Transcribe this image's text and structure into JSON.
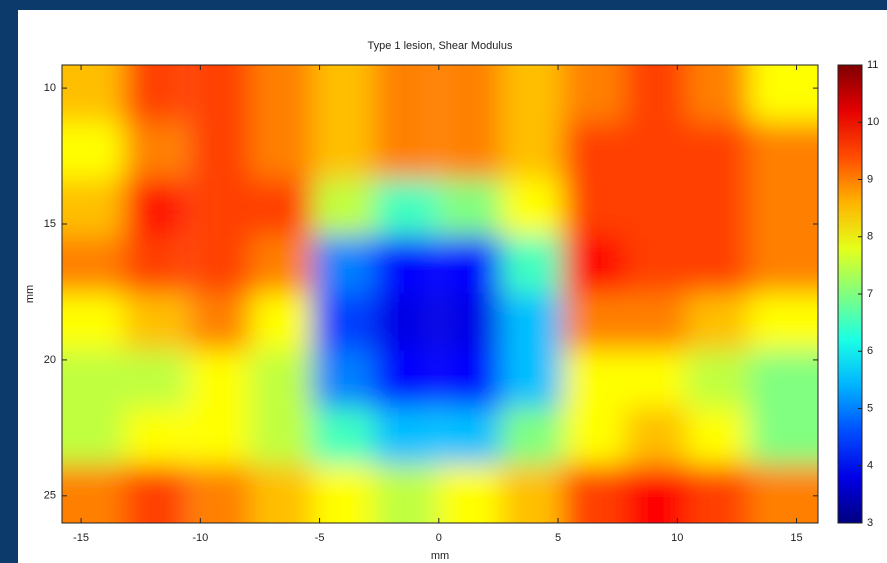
{
  "chart_data": {
    "type": "heatmap",
    "title": "Type 1   lesion, Shear Modulus",
    "x_label": "mm",
    "y_label": "mm",
    "colormap": "jet",
    "x": [
      -14.5,
      -11.9,
      -9.2,
      -6.6,
      -4.0,
      -1.4,
      1.3,
      3.9,
      6.5,
      9.1,
      11.7,
      14.3
    ],
    "y": [
      10.2,
      12.3,
      14.4,
      16.5,
      18.6,
      20.7,
      22.8,
      24.9
    ],
    "z": [
      [
        8.5,
        9.5,
        9.5,
        9,
        8.5,
        9,
        9,
        8.5,
        9,
        9.5,
        9,
        8
      ],
      [
        8,
        9,
        9.5,
        9,
        8.5,
        9,
        9,
        8.5,
        9.5,
        9.5,
        9.5,
        9
      ],
      [
        8.5,
        9.8,
        9.5,
        9.5,
        7.5,
        6.5,
        7,
        8,
        9.5,
        9.5,
        9.5,
        9
      ],
      [
        9,
        9.5,
        9.5,
        9,
        5,
        4,
        4,
        6.5,
        10,
        9.5,
        9.5,
        9
      ],
      [
        8,
        8.5,
        9,
        8,
        4.5,
        3.8,
        3.8,
        5.5,
        9,
        9,
        8.5,
        8
      ],
      [
        7.5,
        7.5,
        8,
        7.5,
        5,
        4,
        4,
        5.5,
        8,
        8,
        7.5,
        7
      ],
      [
        7.5,
        8,
        8,
        7.5,
        6.5,
        5.5,
        5.5,
        7,
        8,
        8.5,
        8,
        7
      ],
      [
        9,
        9.5,
        9,
        8.5,
        8,
        7.5,
        8,
        8.5,
        9.5,
        10,
        9.5,
        9
      ]
    ],
    "xlim": [
      -15.8,
      15.9
    ],
    "ylim": [
      9.15,
      26.0
    ],
    "y_reversed": true,
    "xticks": [
      -15,
      -10,
      -5,
      0,
      5,
      10,
      15
    ],
    "yticks": [
      10,
      15,
      20,
      25
    ],
    "clim": [
      3,
      11
    ],
    "cticks": [
      3,
      4,
      5,
      6,
      7,
      8,
      9,
      10,
      11
    ]
  }
}
